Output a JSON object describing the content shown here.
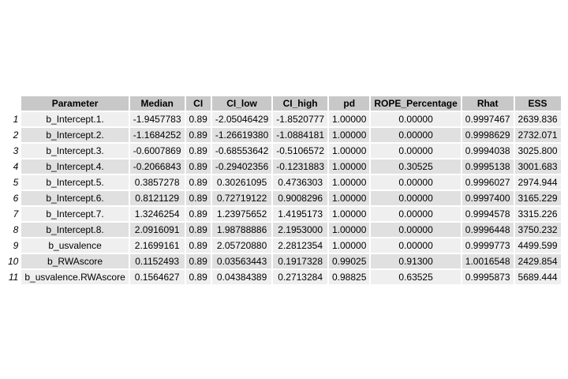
{
  "table": {
    "columns": [
      "Parameter",
      "Median",
      "CI",
      "CI_low",
      "CI_high",
      "pd",
      "ROPE_Percentage",
      "Rhat",
      "ESS"
    ],
    "rows": [
      {
        "n": "1",
        "cells": [
          "b_Intercept.1.",
          "-1.9457783",
          "0.89",
          "-2.05046429",
          "-1.8520777",
          "1.00000",
          "0.00000",
          "0.9997467",
          "2639.836"
        ]
      },
      {
        "n": "2",
        "cells": [
          "b_Intercept.2.",
          "-1.1684252",
          "0.89",
          "-1.26619380",
          "-1.0884181",
          "1.00000",
          "0.00000",
          "0.9998629",
          "2732.071"
        ]
      },
      {
        "n": "3",
        "cells": [
          "b_Intercept.3.",
          "-0.6007869",
          "0.89",
          "-0.68553642",
          "-0.5106572",
          "1.00000",
          "0.00000",
          "0.9994038",
          "3025.800"
        ]
      },
      {
        "n": "4",
        "cells": [
          "b_Intercept.4.",
          "-0.2066843",
          "0.89",
          "-0.29402356",
          "-0.1231883",
          "1.00000",
          "0.30525",
          "0.9995138",
          "3001.683"
        ]
      },
      {
        "n": "5",
        "cells": [
          "b_Intercept.5.",
          "0.3857278",
          "0.89",
          "0.30261095",
          "0.4736303",
          "1.00000",
          "0.00000",
          "0.9996027",
          "2974.944"
        ]
      },
      {
        "n": "6",
        "cells": [
          "b_Intercept.6.",
          "0.8121129",
          "0.89",
          "0.72719122",
          "0.9008296",
          "1.00000",
          "0.00000",
          "0.9997400",
          "3165.229"
        ]
      },
      {
        "n": "7",
        "cells": [
          "b_Intercept.7.",
          "1.3246254",
          "0.89",
          "1.23975652",
          "1.4195173",
          "1.00000",
          "0.00000",
          "0.9994578",
          "3315.226"
        ]
      },
      {
        "n": "8",
        "cells": [
          "b_Intercept.8.",
          "2.0916091",
          "0.89",
          "1.98788886",
          "2.1953000",
          "1.00000",
          "0.00000",
          "0.9996448",
          "3750.232"
        ]
      },
      {
        "n": "9",
        "cells": [
          "b_usvalence",
          "2.1699161",
          "0.89",
          "2.05720880",
          "2.2812354",
          "1.00000",
          "0.00000",
          "0.9999773",
          "4499.599"
        ]
      },
      {
        "n": "10",
        "cells": [
          "b_RWAscore",
          "0.1152493",
          "0.89",
          "0.03563443",
          "0.1917328",
          "0.99025",
          "0.91300",
          "1.0016548",
          "2429.854"
        ]
      },
      {
        "n": "11",
        "cells": [
          "b_usvalence.RWAscore",
          "0.1564627",
          "0.89",
          "0.04384389",
          "0.2713284",
          "0.98825",
          "0.63525",
          "0.9995873",
          "5689.444"
        ]
      }
    ]
  }
}
